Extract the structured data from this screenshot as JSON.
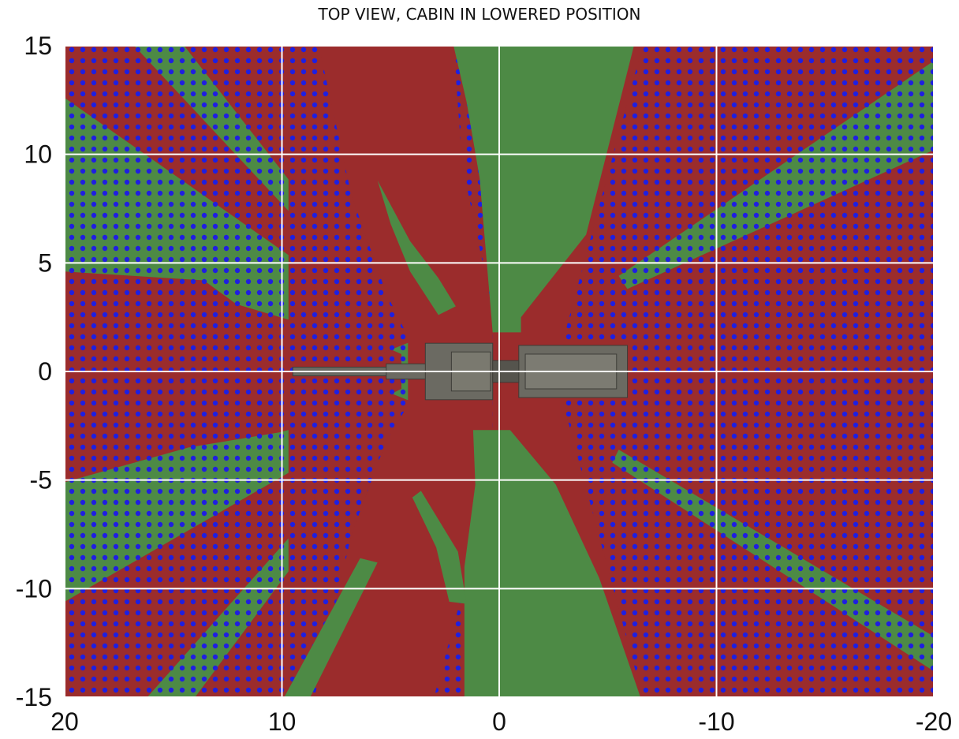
{
  "chart_data": {
    "type": "heatmap",
    "title": "TOP VIEW, CABIN IN LOWERED POSITION",
    "xlabel": "",
    "ylabel": "",
    "xlim": [
      20,
      -20
    ],
    "ylim": [
      -15,
      15
    ],
    "x_ticks": [
      "20",
      "10",
      "0",
      "-10",
      "-20"
    ],
    "y_ticks": [
      "15",
      "10",
      "5",
      "0",
      "-5",
      "-10",
      "-15"
    ],
    "x_tick_values": [
      20,
      10,
      0,
      -10,
      -20
    ],
    "y_tick_values": [
      15,
      10,
      5,
      0,
      -5,
      -10,
      -15
    ],
    "grid": true,
    "colors": {
      "red": "#9b2c2c",
      "green": "#4d8a45",
      "dots": "#1f1fe0",
      "vehicle": "#6b6a62"
    },
    "zones": [
      {
        "color": "green",
        "pattern": "dotted",
        "points": [
          [
            20,
            15
          ],
          [
            14.5,
            15
          ],
          [
            4.2,
            1.8
          ],
          [
            4.2,
            -1.8
          ],
          [
            14,
            -15
          ],
          [
            20,
            -15
          ]
        ]
      },
      {
        "color": "red",
        "pattern": "dotted",
        "points": [
          [
            20,
            15
          ],
          [
            16.8,
            15
          ],
          [
            4.2,
            1.5
          ],
          [
            20,
            12.6
          ]
        ]
      },
      {
        "color": "red",
        "pattern": "dotted",
        "points": [
          [
            20,
            4.6
          ],
          [
            13.6,
            4.2
          ],
          [
            12.1,
            3.1
          ],
          [
            9.4,
            2.3
          ],
          [
            6.5,
            1.7
          ],
          [
            4.5,
            0.8
          ],
          [
            4.5,
            -0.8
          ],
          [
            6.7,
            -1.9
          ],
          [
            10.1,
            -2.8
          ],
          [
            14.3,
            -3.5
          ],
          [
            20,
            -5.1
          ]
        ]
      },
      {
        "color": "red",
        "pattern": "dotted",
        "points": [
          [
            20,
            -10.6
          ],
          [
            4.2,
            -1.5
          ],
          [
            16.2,
            -15
          ],
          [
            20,
            -15
          ]
        ]
      },
      {
        "color": "red",
        "pattern": "dotted",
        "points": [
          [
            9.7,
            15
          ],
          [
            3,
            15
          ],
          [
            3,
            1.8
          ],
          [
            5.5,
            0.8
          ],
          [
            5.5,
            -0.8
          ],
          [
            3,
            -1.8
          ],
          [
            3,
            -15
          ],
          [
            9.7,
            -15
          ]
        ]
      },
      {
        "color": "red",
        "pattern": "solid",
        "points": [
          [
            8.3,
            15
          ],
          [
            2.1,
            15
          ],
          [
            1.7,
            9.5
          ],
          [
            0.3,
            2.8
          ],
          [
            0.3,
            -2.8
          ],
          [
            1.5,
            -9.5
          ],
          [
            3,
            -15
          ],
          [
            8.5,
            -15
          ],
          [
            6.8,
            -7.5
          ],
          [
            5.2,
            -3.2
          ],
          [
            4.1,
            -1.4
          ],
          [
            4.1,
            1.4
          ],
          [
            5.2,
            3.6
          ],
          [
            6.8,
            8.1
          ]
        ]
      },
      {
        "color": "red",
        "pattern": "solid",
        "points": [
          [
            0.3,
            15
          ],
          [
            -6.6,
            15
          ],
          [
            -6.6,
            -15
          ],
          [
            0.3,
            -15
          ]
        ]
      },
      {
        "color": "red",
        "pattern": "dotted",
        "points": [
          [
            -6.6,
            15
          ],
          [
            -20,
            15
          ],
          [
            -20,
            -15
          ],
          [
            -6.6,
            -15
          ],
          [
            -2.9,
            -1.3
          ],
          [
            -2.9,
            1.3
          ]
        ]
      },
      {
        "color": "green",
        "pattern": "dotted",
        "points": [
          [
            -20,
            14.3
          ],
          [
            -5.5,
            4.4
          ],
          [
            -5.9,
            3.8
          ],
          [
            -20,
            10.2
          ]
        ]
      },
      {
        "color": "green",
        "pattern": "dotted",
        "points": [
          [
            -20,
            -12.2
          ],
          [
            -5.5,
            -3.6
          ],
          [
            -5.2,
            -4.2
          ],
          [
            -20,
            -13.8
          ]
        ]
      },
      {
        "color": "green",
        "pattern": "solid",
        "points": [
          [
            2.1,
            15
          ],
          [
            -6.2,
            15
          ],
          [
            -4,
            6.3
          ],
          [
            -1,
            2.5
          ],
          [
            -1,
            1.8
          ],
          [
            0.3,
            1.8
          ],
          [
            0.9,
            8.9
          ],
          [
            1.5,
            12.4
          ]
        ]
      },
      {
        "color": "green",
        "pattern": "solid",
        "points": [
          [
            1.2,
            -2.7
          ],
          [
            -0.5,
            -2.7
          ],
          [
            -2.6,
            -5.2
          ],
          [
            -4.6,
            -9.5
          ],
          [
            -6.5,
            -15
          ],
          [
            1.6,
            -15
          ],
          [
            1.6,
            -9
          ],
          [
            1.1,
            -5.2
          ]
        ]
      },
      {
        "color": "green",
        "pattern": "solid",
        "points": [
          [
            5.6,
            8.8
          ],
          [
            4.1,
            6
          ],
          [
            2.8,
            4.3
          ],
          [
            2,
            3
          ],
          [
            2.8,
            2.6
          ],
          [
            4.1,
            4.6
          ],
          [
            5,
            6.8
          ]
        ]
      },
      {
        "color": "green",
        "pattern": "solid",
        "points": [
          [
            3.6,
            -5.5
          ],
          [
            1.9,
            -8.3
          ],
          [
            1.5,
            -10.7
          ],
          [
            2.3,
            -10.6
          ],
          [
            2.9,
            -8.1
          ],
          [
            4,
            -5.8
          ]
        ]
      },
      {
        "color": "green",
        "pattern": "solid",
        "points": [
          [
            6.4,
            -8.6
          ],
          [
            9.9,
            -15
          ],
          [
            8.7,
            -15
          ],
          [
            5.6,
            -8.8
          ]
        ]
      }
    ],
    "vehicle": {
      "label": "vehicle",
      "x_range": [
        9.5,
        -5.9
      ],
      "y_range": [
        -1.3,
        1.3
      ]
    }
  }
}
